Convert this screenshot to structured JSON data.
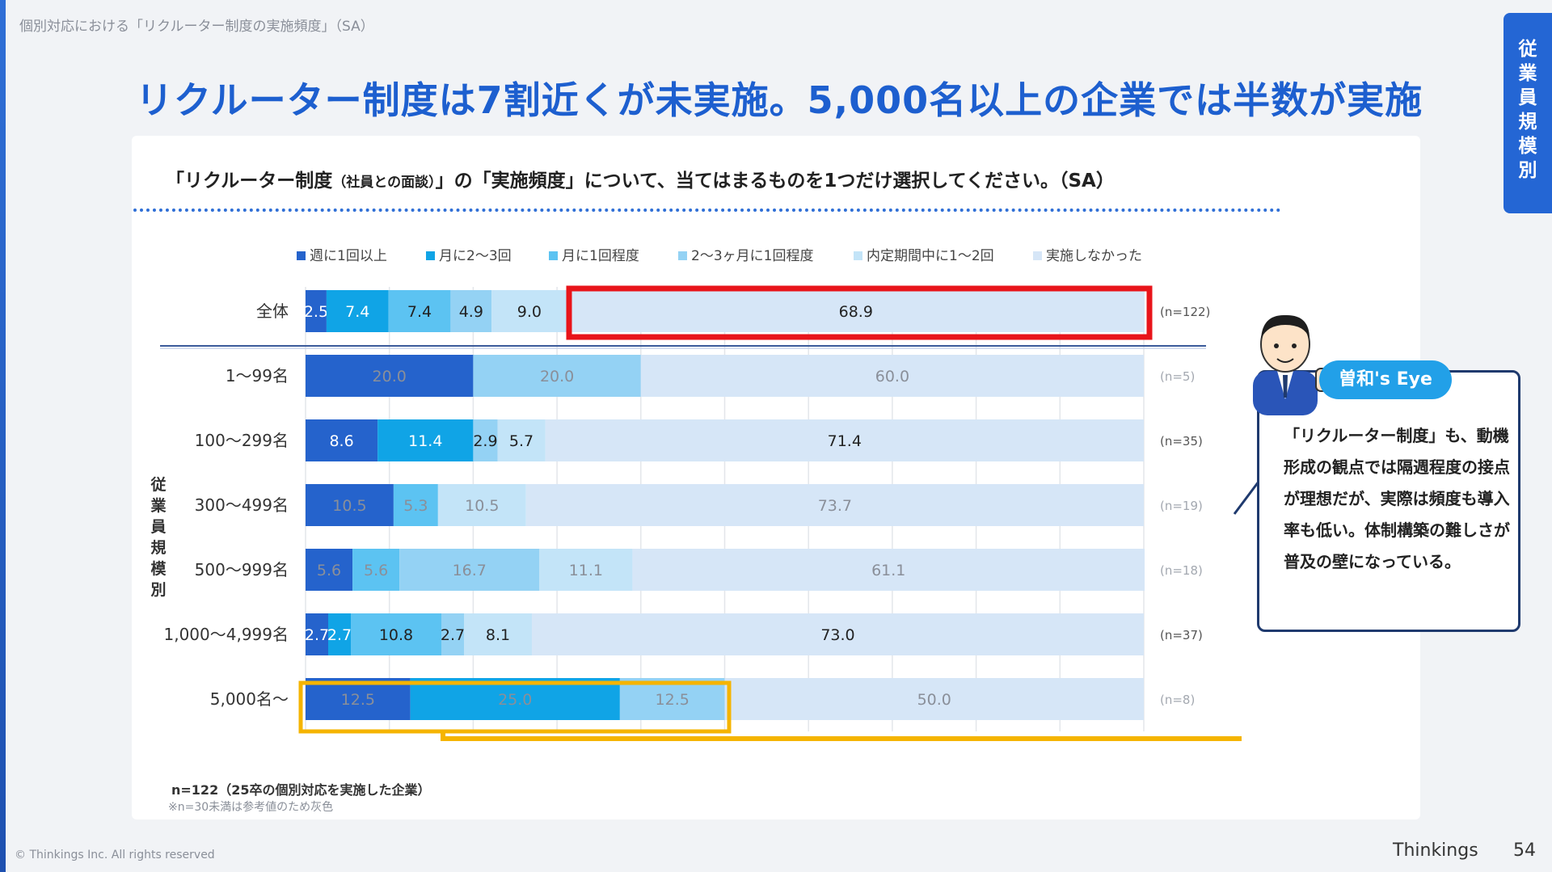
{
  "page": {
    "breadcrumb": "個別対応における「リクルーター制度の実施頻度」（SA）",
    "headline": "リクルーター制度は7割近くが未実施。5,000名以上の企業では半数が実施",
    "side_tab": "従業員規模別",
    "question_prefix": "「リクルーター制度",
    "question_small": "（社員との面談）",
    "question_suffix": "」の「実施頻度」について、当てはまるものを1つだけ選択してください。（SA）",
    "footnote": "n=122（25卒の個別対応を実施した企業）",
    "footnote2": "※n=30未満は参考値のため灰色",
    "copyright": "© Thinkings Inc. All rights reserved",
    "brand": "Thinkings",
    "page_number": "54",
    "eye_title": "曽和's Eye",
    "eye_text": "「リクルーター制度」も、動機形成の観点では隔週程度の接点が理想だが、実際は頻度も導入率も低い。体制構築の難しさが普及の壁になっている。",
    "group_label": "従業員規模別"
  },
  "colors": {
    "accent": "#1d5fcf",
    "highlight_red": "#e8141a",
    "highlight_yellow": "#f5b400",
    "grey_label": "#8a8f99"
  },
  "chart_data": {
    "type": "bar",
    "orientation": "horizontal",
    "stacked": true,
    "xlim": [
      0,
      100
    ],
    "legend_position": "top",
    "grid": true,
    "categories": [
      "全体",
      "1〜99名",
      "100〜299名",
      "300〜499名",
      "500〜999名",
      "1,000〜4,999名",
      "5,000名〜"
    ],
    "n_labels": [
      "(n=122)",
      "(n=5)",
      "(n=35)",
      "(n=19)",
      "(n=18)",
      "(n=37)",
      "(n=8)"
    ],
    "reference_only": [
      false,
      true,
      false,
      true,
      true,
      false,
      true
    ],
    "series": [
      {
        "name": "週に1回以上",
        "color": "#2563cc",
        "values": [
          2.5,
          20.0,
          8.6,
          10.5,
          5.6,
          2.7,
          12.5
        ],
        "labels": [
          "2.5",
          "20.0",
          "8.6",
          "10.5",
          "5.6",
          "2.7",
          "12.5"
        ]
      },
      {
        "name": "月に2〜3回",
        "color": "#10a4e6",
        "values": [
          7.4,
          0,
          11.4,
          0,
          0,
          2.7,
          25.0
        ],
        "labels": [
          "7.4",
          "",
          "11.4",
          "",
          "",
          "2.7",
          "25.0"
        ]
      },
      {
        "name": "月に1回程度",
        "color": "#5cc3f2",
        "values": [
          7.4,
          0,
          0,
          5.3,
          5.6,
          10.8,
          0
        ],
        "labels": [
          "7.4",
          "",
          "",
          "5.3",
          "5.6",
          "10.8",
          ""
        ]
      },
      {
        "name": "2〜3ヶ月に1回程度",
        "color": "#94d2f4",
        "values": [
          4.9,
          20.0,
          2.9,
          0,
          16.7,
          2.7,
          12.5
        ],
        "labels": [
          "4.9",
          "20.0",
          "2.9",
          "",
          "16.7",
          "2.7",
          "12.5"
        ]
      },
      {
        "name": "内定期間中に1〜2回",
        "color": "#c3e4f8",
        "values": [
          9.0,
          0,
          5.7,
          10.5,
          11.1,
          8.1,
          0
        ],
        "labels": [
          "9.0",
          "",
          "5.7",
          "10.5",
          "11.1",
          "8.1",
          ""
        ]
      },
      {
        "name": "実施しなかった",
        "color": "#d6e6f7",
        "values": [
          68.9,
          60.0,
          71.4,
          73.7,
          61.1,
          73.0,
          50.0
        ],
        "labels": [
          "68.9",
          "60.0",
          "71.4",
          "73.7",
          "61.1",
          "73.0",
          "50.0"
        ]
      }
    ]
  }
}
